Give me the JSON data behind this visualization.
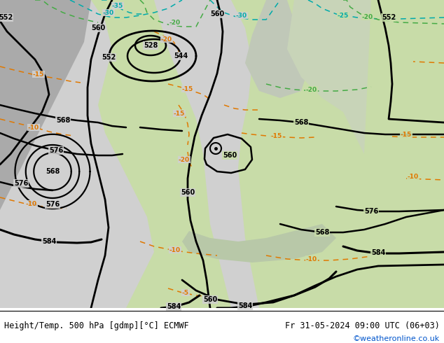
{
  "title_left": "Height/Temp. 500 hPa [gdmp][°C] ECMWF",
  "title_right": "Fr 31-05-2024 09:00 UTC (06+03)",
  "watermark": "©weatheronline.co.uk",
  "bg_green": "#c8dca8",
  "bg_gray": "#b8b8b8",
  "bg_light_gray": "#d0d0d0",
  "contour_color": "#000000",
  "orange": "#e07800",
  "cyan": "#00aaaa",
  "lgreen": "#44aa44",
  "watermark_color": "#0055cc",
  "title_bg": "#ffffff"
}
